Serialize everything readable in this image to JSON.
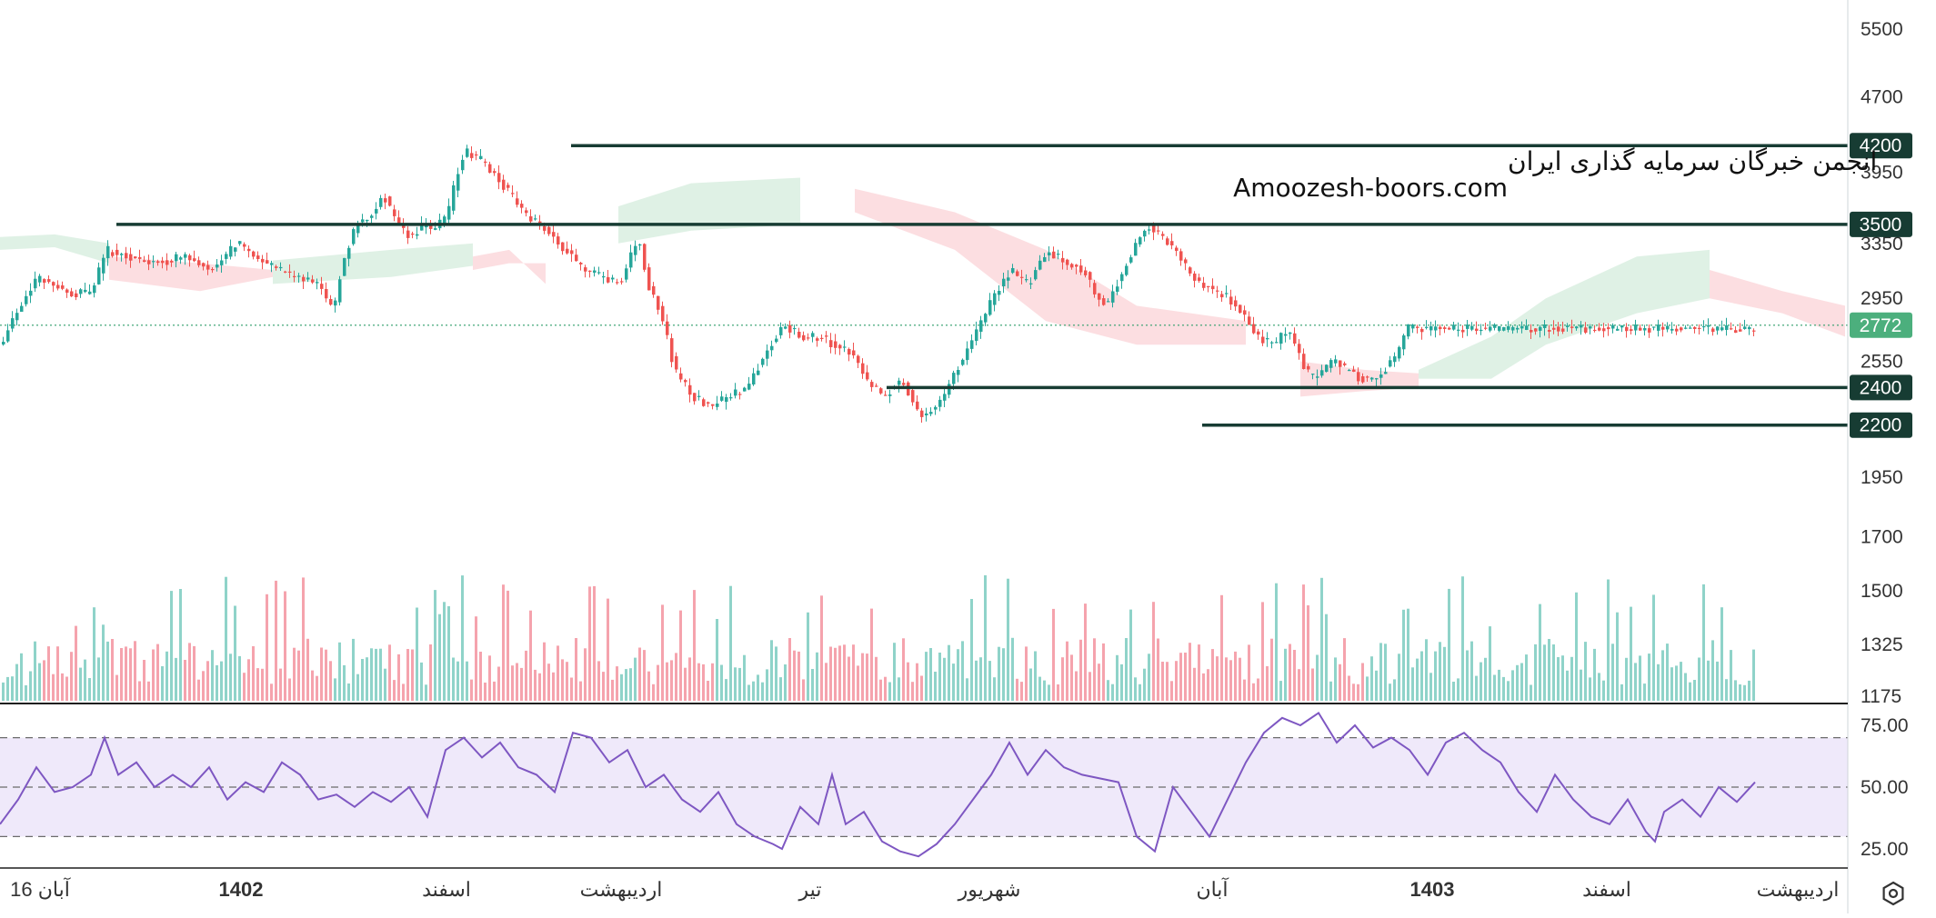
{
  "watermark": {
    "line1": "انجمن خبرگان سرمایه گذاری ایران",
    "line2": "Amoozesh-boors.com"
  },
  "settings_icon": "gear-icon",
  "colors": {
    "up": "#26a69a",
    "down": "#ef5350",
    "up_volume": "#8fd3c9",
    "down_volume": "#f5a3ad",
    "cloud_bull": "#d9efe1",
    "cloud_bear": "#fbd8dc",
    "rsi_line": "#7e57c2",
    "rsi_band": "#efe9fa",
    "level_line": "#173c33",
    "last_price_bg": "#4caf7d"
  },
  "chart_data": {
    "type": "candlestick",
    "price_axis": {
      "ticks": [
        5500,
        4700,
        3950,
        3350,
        2950,
        2550,
        1950,
        1700,
        1500,
        1325,
        1175
      ],
      "scale": "log"
    },
    "levels": [
      {
        "value": 4200,
        "label": "4200"
      },
      {
        "value": 3500,
        "label": "3500"
      },
      {
        "value": 2400,
        "label": "2400"
      },
      {
        "value": 2200,
        "label": "2200"
      }
    ],
    "last_price": {
      "value": 2772,
      "label": "2772"
    },
    "time_axis": [
      "16 آبان",
      "1402",
      "اسفند",
      "اردیبهشت",
      "تیر",
      "شهریور",
      "آبان",
      "1403",
      "اسفند",
      "اردیبهشت"
    ],
    "time_axis_bold": [
      false,
      true,
      false,
      false,
      false,
      false,
      false,
      true,
      false,
      false
    ],
    "price_path": [
      [
        0,
        2650
      ],
      [
        20,
        2900
      ],
      [
        40,
        3100
      ],
      [
        60,
        3050
      ],
      [
        80,
        2980
      ],
      [
        100,
        3000
      ],
      [
        115,
        3300
      ],
      [
        140,
        3250
      ],
      [
        170,
        3200
      ],
      [
        200,
        3250
      ],
      [
        230,
        3150
      ],
      [
        260,
        3350
      ],
      [
        290,
        3200
      ],
      [
        320,
        3100
      ],
      [
        350,
        3050
      ],
      [
        365,
        2850
      ],
      [
        375,
        3200
      ],
      [
        390,
        3500
      ],
      [
        405,
        3550
      ],
      [
        420,
        3750
      ],
      [
        435,
        3500
      ],
      [
        450,
        3400
      ],
      [
        465,
        3500
      ],
      [
        475,
        3450
      ],
      [
        480,
        3500
      ],
      [
        490,
        3550
      ],
      [
        500,
        3900
      ],
      [
        510,
        4150
      ],
      [
        530,
        4050
      ],
      [
        560,
        3750
      ],
      [
        580,
        3550
      ],
      [
        600,
        3450
      ],
      [
        620,
        3300
      ],
      [
        640,
        3150
      ],
      [
        660,
        3100
      ],
      [
        680,
        3050
      ],
      [
        700,
        3400
      ],
      [
        710,
        3050
      ],
      [
        725,
        2850
      ],
      [
        740,
        2500
      ],
      [
        760,
        2350
      ],
      [
        780,
        2300
      ],
      [
        800,
        2350
      ],
      [
        820,
        2400
      ],
      [
        840,
        2600
      ],
      [
        860,
        2780
      ],
      [
        880,
        2700
      ],
      [
        900,
        2700
      ],
      [
        915,
        2650
      ],
      [
        935,
        2600
      ],
      [
        950,
        2450
      ],
      [
        970,
        2350
      ],
      [
        990,
        2450
      ],
      [
        1010,
        2250
      ],
      [
        1030,
        2300
      ],
      [
        1050,
        2500
      ],
      [
        1070,
        2700
      ],
      [
        1090,
        2950
      ],
      [
        1110,
        3150
      ],
      [
        1130,
        3050
      ],
      [
        1150,
        3300
      ],
      [
        1170,
        3200
      ],
      [
        1190,
        3150
      ],
      [
        1205,
        2950
      ],
      [
        1215,
        2900
      ],
      [
        1230,
        3100
      ],
      [
        1245,
        3300
      ],
      [
        1260,
        3500
      ],
      [
        1275,
        3400
      ],
      [
        1290,
        3300
      ],
      [
        1305,
        3150
      ],
      [
        1320,
        3050
      ],
      [
        1335,
        3000
      ],
      [
        1350,
        2950
      ],
      [
        1365,
        2850
      ],
      [
        1380,
        2700
      ],
      [
        1400,
        2650
      ],
      [
        1415,
        2750
      ],
      [
        1430,
        2550
      ],
      [
        1440,
        2450
      ],
      [
        1455,
        2500
      ],
      [
        1465,
        2550
      ],
      [
        1480,
        2500
      ],
      [
        1495,
        2450
      ],
      [
        1510,
        2450
      ],
      [
        1520,
        2500
      ],
      [
        1535,
        2600
      ],
      [
        1545,
        2750
      ]
    ],
    "cloud_segments": [
      {
        "kind": "bull",
        "points": [
          [
            0,
            3300,
            3400
          ],
          [
            60,
            3320,
            3420
          ],
          [
            120,
            3200,
            3350
          ]
        ]
      },
      {
        "kind": "bear",
        "points": [
          [
            120,
            3250,
            3080
          ],
          [
            220,
            3200,
            3000
          ],
          [
            300,
            3150,
            3100
          ]
        ]
      },
      {
        "kind": "bull",
        "points": [
          [
            300,
            3220,
            3050
          ],
          [
            430,
            3300,
            3100
          ],
          [
            520,
            3350,
            3180
          ]
        ]
      },
      {
        "kind": "bear",
        "points": [
          [
            520,
            3250,
            3150
          ],
          [
            560,
            3300,
            3200
          ],
          [
            600,
            3050,
            3200
          ]
        ]
      },
      {
        "kind": "bull",
        "points": [
          [
            680,
            3650,
            3350
          ],
          [
            760,
            3850,
            3450
          ],
          [
            880,
            3900,
            3500
          ]
        ]
      },
      {
        "kind": "bear",
        "points": [
          [
            940,
            3800,
            3600
          ],
          [
            1050,
            3600,
            3300
          ],
          [
            1150,
            3300,
            2800
          ]
        ]
      },
      {
        "kind": "bear",
        "points": [
          [
            1150,
            3300,
            2800
          ],
          [
            1250,
            2900,
            2650
          ],
          [
            1370,
            2800,
            2650
          ]
        ]
      },
      {
        "kind": "bear",
        "points": [
          [
            1430,
            2550,
            2350
          ],
          [
            1500,
            2500,
            2380
          ],
          [
            1560,
            2480,
            2400
          ]
        ]
      },
      {
        "kind": "bull",
        "points": [
          [
            1560,
            2500,
            2450
          ],
          [
            1640,
            2700,
            2450
          ],
          [
            1700,
            2950,
            2650
          ]
        ]
      },
      {
        "kind": "bull",
        "points": [
          [
            1700,
            2950,
            2650
          ],
          [
            1800,
            3250,
            2850
          ],
          [
            1880,
            3300,
            2950
          ]
        ]
      },
      {
        "kind": "bear",
        "points": [
          [
            1880,
            3150,
            2950
          ],
          [
            1960,
            3000,
            2850
          ],
          [
            2029,
            2900,
            2700
          ]
        ]
      }
    ],
    "volume": {
      "range": [
        1175,
        1900
      ],
      "spikes": [
        [
          640,
          1880
        ],
        [
          645,
          1610
        ],
        [
          1610,
          1580
        ],
        [
          710,
          1320
        ],
        [
          1650,
          1380
        ]
      ]
    },
    "rsi": {
      "ticks": [
        "75.00",
        "50.00",
        "25.00"
      ],
      "tick_values": [
        75,
        50,
        25
      ],
      "upper_band": 70,
      "middle": 50,
      "lower_band": 30,
      "range": [
        18,
        82
      ],
      "points": [
        [
          0,
          35
        ],
        [
          20,
          45
        ],
        [
          40,
          58
        ],
        [
          60,
          48
        ],
        [
          80,
          50
        ],
        [
          100,
          55
        ],
        [
          115,
          70
        ],
        [
          130,
          55
        ],
        [
          150,
          60
        ],
        [
          170,
          50
        ],
        [
          190,
          55
        ],
        [
          210,
          50
        ],
        [
          230,
          58
        ],
        [
          250,
          45
        ],
        [
          270,
          52
        ],
        [
          290,
          48
        ],
        [
          310,
          60
        ],
        [
          330,
          55
        ],
        [
          350,
          45
        ],
        [
          370,
          47
        ],
        [
          390,
          42
        ],
        [
          410,
          48
        ],
        [
          430,
          44
        ],
        [
          450,
          50
        ],
        [
          470,
          38
        ],
        [
          490,
          65
        ],
        [
          510,
          70
        ],
        [
          530,
          62
        ],
        [
          550,
          68
        ],
        [
          570,
          58
        ],
        [
          590,
          55
        ],
        [
          610,
          48
        ],
        [
          630,
          72
        ],
        [
          650,
          70
        ],
        [
          670,
          60
        ],
        [
          690,
          65
        ],
        [
          710,
          50
        ],
        [
          730,
          55
        ],
        [
          750,
          45
        ],
        [
          770,
          40
        ],
        [
          790,
          48
        ],
        [
          810,
          35
        ],
        [
          830,
          30
        ],
        [
          850,
          27
        ],
        [
          860,
          25
        ],
        [
          880,
          42
        ],
        [
          900,
          35
        ],
        [
          915,
          55
        ],
        [
          930,
          35
        ],
        [
          950,
          40
        ],
        [
          970,
          28
        ],
        [
          990,
          24
        ],
        [
          1010,
          22
        ],
        [
          1030,
          27
        ],
        [
          1050,
          35
        ],
        [
          1070,
          45
        ],
        [
          1090,
          55
        ],
        [
          1110,
          68
        ],
        [
          1130,
          55
        ],
        [
          1150,
          65
        ],
        [
          1170,
          58
        ],
        [
          1190,
          55
        ],
        [
          1230,
          52
        ],
        [
          1250,
          30
        ],
        [
          1270,
          24
        ],
        [
          1290,
          50
        ],
        [
          1310,
          40
        ],
        [
          1330,
          30
        ],
        [
          1350,
          45
        ],
        [
          1370,
          60
        ],
        [
          1390,
          72
        ],
        [
          1410,
          78
        ],
        [
          1430,
          75
        ],
        [
          1450,
          80
        ],
        [
          1470,
          68
        ],
        [
          1490,
          75
        ],
        [
          1510,
          66
        ],
        [
          1530,
          70
        ],
        [
          1550,
          65
        ],
        [
          1570,
          55
        ],
        [
          1590,
          68
        ],
        [
          1610,
          72
        ],
        [
          1630,
          65
        ],
        [
          1650,
          60
        ],
        [
          1670,
          48
        ],
        [
          1690,
          40
        ],
        [
          1710,
          55
        ],
        [
          1730,
          45
        ],
        [
          1750,
          38
        ],
        [
          1770,
          35
        ],
        [
          1790,
          45
        ],
        [
          1810,
          32
        ],
        [
          1820,
          28
        ],
        [
          1830,
          40
        ],
        [
          1850,
          45
        ],
        [
          1870,
          38
        ],
        [
          1890,
          50
        ],
        [
          1910,
          44
        ],
        [
          1930,
          52
        ]
      ]
    }
  }
}
